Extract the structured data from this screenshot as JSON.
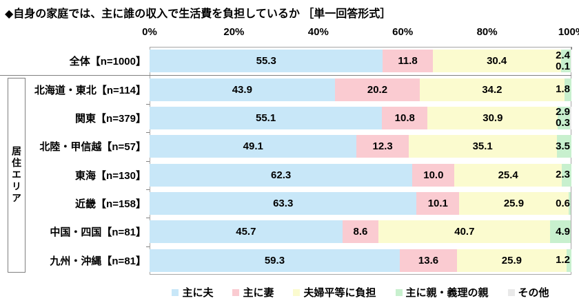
{
  "title": "◆自身の家庭では、主に誰の収入で生活費を負担しているか ［単一回答形式］",
  "group_label": "居住エリア",
  "chart_data": {
    "type": "bar",
    "orientation": "horizontal",
    "stacked": true,
    "title": "◆自身の家庭では、主に誰の収入で生活費を負担しているか ［単一回答形式］",
    "x_ticks": [
      "0%",
      "20%",
      "40%",
      "60%",
      "80%",
      "100%"
    ],
    "xlim": [
      0,
      100
    ],
    "grid": false,
    "legend_position": "bottom",
    "category_group_label": "居住エリア",
    "categories": [
      "全体【n=1000】",
      "北海道・東北【n=114】",
      "関東【n=379】",
      "北陸・甲信越【n=57】",
      "東海【n=130】",
      "近畿【n=158】",
      "中国・四国【n=81】",
      "九州・沖縄【n=81】"
    ],
    "series": [
      {
        "name": "主に夫",
        "color": "#C8E7F8",
        "values": [
          55.3,
          43.9,
          55.1,
          49.1,
          62.3,
          63.3,
          45.7,
          59.3
        ]
      },
      {
        "name": "主に妻",
        "color": "#FACBD1",
        "values": [
          11.8,
          20.2,
          10.8,
          12.3,
          10.0,
          10.1,
          8.6,
          13.6
        ]
      },
      {
        "name": "夫婦平等に負担",
        "color": "#FBFBCF",
        "values": [
          30.4,
          34.2,
          30.9,
          35.1,
          25.4,
          25.9,
          40.7,
          25.9
        ]
      },
      {
        "name": "主に親・義理の親",
        "color": "#C8F0CE",
        "values": [
          2.4,
          1.8,
          2.9,
          3.5,
          2.3,
          0.6,
          4.9,
          1.2
        ]
      },
      {
        "name": "その他",
        "color": "#E9E9E9",
        "values": [
          0.1,
          null,
          0.3,
          null,
          null,
          null,
          null,
          null
        ]
      }
    ]
  }
}
